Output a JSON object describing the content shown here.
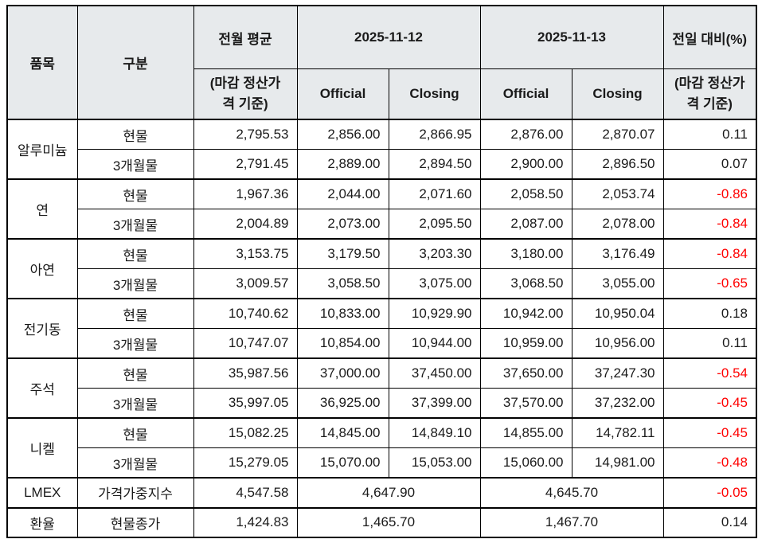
{
  "table": {
    "header": {
      "item": "품목",
      "category": "구분",
      "prev_avg": "전월 평균",
      "prev_avg_sub": "(마감 정산가\n격 기준)",
      "date1": "2025-11-12",
      "date2": "2025-11-13",
      "official": "Official",
      "closing": "Closing",
      "change": "전일 대비(%)",
      "change_sub": "(마감 정산가\n격 기준)"
    },
    "groups": [
      {
        "item": "알루미늄",
        "rows": [
          {
            "category": "현물",
            "prev_avg": "2,795.53",
            "d1_official": "2,856.00",
            "d1_closing": "2,866.95",
            "d2_official": "2,876.00",
            "d2_closing": "2,870.07",
            "change": "0.11"
          },
          {
            "category": "3개월물",
            "prev_avg": "2,791.45",
            "d1_official": "2,889.00",
            "d1_closing": "2,894.50",
            "d2_official": "2,900.00",
            "d2_closing": "2,896.50",
            "change": "0.07"
          }
        ]
      },
      {
        "item": "연",
        "rows": [
          {
            "category": "현물",
            "prev_avg": "1,967.36",
            "d1_official": "2,044.00",
            "d1_closing": "2,071.60",
            "d2_official": "2,058.50",
            "d2_closing": "2,053.74",
            "change": "-0.86"
          },
          {
            "category": "3개월물",
            "prev_avg": "2,004.89",
            "d1_official": "2,073.00",
            "d1_closing": "2,095.50",
            "d2_official": "2,087.00",
            "d2_closing": "2,078.00",
            "change": "-0.84"
          }
        ]
      },
      {
        "item": "아연",
        "rows": [
          {
            "category": "현물",
            "prev_avg": "3,153.75",
            "d1_official": "3,179.50",
            "d1_closing": "3,203.30",
            "d2_official": "3,180.00",
            "d2_closing": "3,176.49",
            "change": "-0.84"
          },
          {
            "category": "3개월물",
            "prev_avg": "3,009.57",
            "d1_official": "3,058.50",
            "d1_closing": "3,075.00",
            "d2_official": "3,068.50",
            "d2_closing": "3,055.00",
            "change": "-0.65"
          }
        ]
      },
      {
        "item": "전기동",
        "rows": [
          {
            "category": "현물",
            "prev_avg": "10,740.62",
            "d1_official": "10,833.00",
            "d1_closing": "10,929.90",
            "d2_official": "10,942.00",
            "d2_closing": "10,950.04",
            "change": "0.18"
          },
          {
            "category": "3개월물",
            "prev_avg": "10,747.07",
            "d1_official": "10,854.00",
            "d1_closing": "10,944.00",
            "d2_official": "10,959.00",
            "d2_closing": "10,956.00",
            "change": "0.11"
          }
        ]
      },
      {
        "item": "주석",
        "rows": [
          {
            "category": "현물",
            "prev_avg": "35,987.56",
            "d1_official": "37,000.00",
            "d1_closing": "37,450.00",
            "d2_official": "37,650.00",
            "d2_closing": "37,247.30",
            "change": "-0.54"
          },
          {
            "category": "3개월물",
            "prev_avg": "35,997.05",
            "d1_official": "36,925.00",
            "d1_closing": "37,399.00",
            "d2_official": "37,570.00",
            "d2_closing": "37,232.00",
            "change": "-0.45"
          }
        ]
      },
      {
        "item": "니켈",
        "rows": [
          {
            "category": "현물",
            "prev_avg": "15,082.25",
            "d1_official": "14,845.00",
            "d1_closing": "14,849.10",
            "d2_official": "14,855.00",
            "d2_closing": "14,782.11",
            "change": "-0.45"
          },
          {
            "category": "3개월물",
            "prev_avg": "15,279.05",
            "d1_official": "15,070.00",
            "d1_closing": "15,053.00",
            "d2_official": "15,060.00",
            "d2_closing": "14,981.00",
            "change": "-0.48"
          }
        ]
      }
    ],
    "summary_rows": [
      {
        "item": "LMEX",
        "category": "가격가중지수",
        "prev_avg": "4,547.58",
        "d1": "4,647.90",
        "d2": "4,645.70",
        "change": "-0.05"
      },
      {
        "item": "환율",
        "category": "현물종가",
        "prev_avg": "1,424.83",
        "d1": "1,465.70",
        "d2": "1,467.70",
        "change": "0.14"
      }
    ]
  },
  "colors": {
    "header_bg": "#e7eaec",
    "border": "#000000",
    "text": "#1a1a1a",
    "negative_text": "#ff0000"
  }
}
